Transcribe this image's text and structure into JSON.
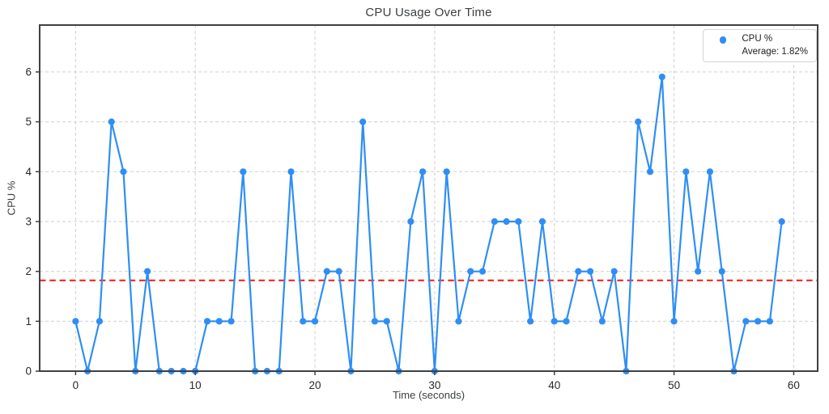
{
  "chart_data": {
    "type": "line",
    "title": "CPU Usage Over Time",
    "xlabel": "Time (seconds)",
    "ylabel": "CPU %",
    "x": [
      0,
      1,
      2,
      3,
      4,
      5,
      6,
      7,
      8,
      9,
      10,
      11,
      12,
      13,
      14,
      15,
      16,
      17,
      18,
      19,
      20,
      21,
      22,
      23,
      24,
      25,
      26,
      27,
      28,
      29,
      30,
      31,
      32,
      33,
      34,
      35,
      36,
      37,
      38,
      39,
      40,
      41,
      42,
      43,
      44,
      45,
      46,
      47,
      48,
      49,
      50,
      51,
      52,
      53,
      54,
      55,
      56,
      57,
      58,
      59
    ],
    "series": [
      {
        "name": "CPU %",
        "values": [
          1,
          0,
          1,
          5,
          4,
          0,
          2,
          0,
          0,
          0,
          0,
          1,
          1,
          1,
          4,
          0,
          0,
          0,
          4,
          1,
          1,
          2,
          2,
          0,
          5,
          1,
          1,
          0,
          3,
          4,
          0,
          4,
          1,
          2,
          2,
          3,
          3,
          3,
          1,
          3,
          1,
          1,
          2,
          2,
          1,
          2,
          0,
          5,
          4,
          5.9,
          1,
          4,
          2,
          4,
          2,
          0,
          1,
          1,
          1,
          3
        ]
      }
    ],
    "average_value": 1.82,
    "x_ticks": [
      0,
      10,
      20,
      30,
      40,
      50,
      60
    ],
    "y_ticks": [
      0,
      1,
      2,
      3,
      4,
      5,
      6
    ],
    "xlim": [
      -3,
      62
    ],
    "ylim": [
      0,
      6.94
    ],
    "grid": true,
    "legend": {
      "position": "upper right",
      "entries": [
        {
          "label": "CPU %",
          "style": "line-marker"
        },
        {
          "label": "Average: 1.82%",
          "style": "dashed"
        }
      ]
    },
    "colors": {
      "series": "#2e8ef5",
      "average": "#f2190d",
      "grid": "#d4d4d4",
      "spine": "#3e4144",
      "text": "#3c4043"
    }
  }
}
